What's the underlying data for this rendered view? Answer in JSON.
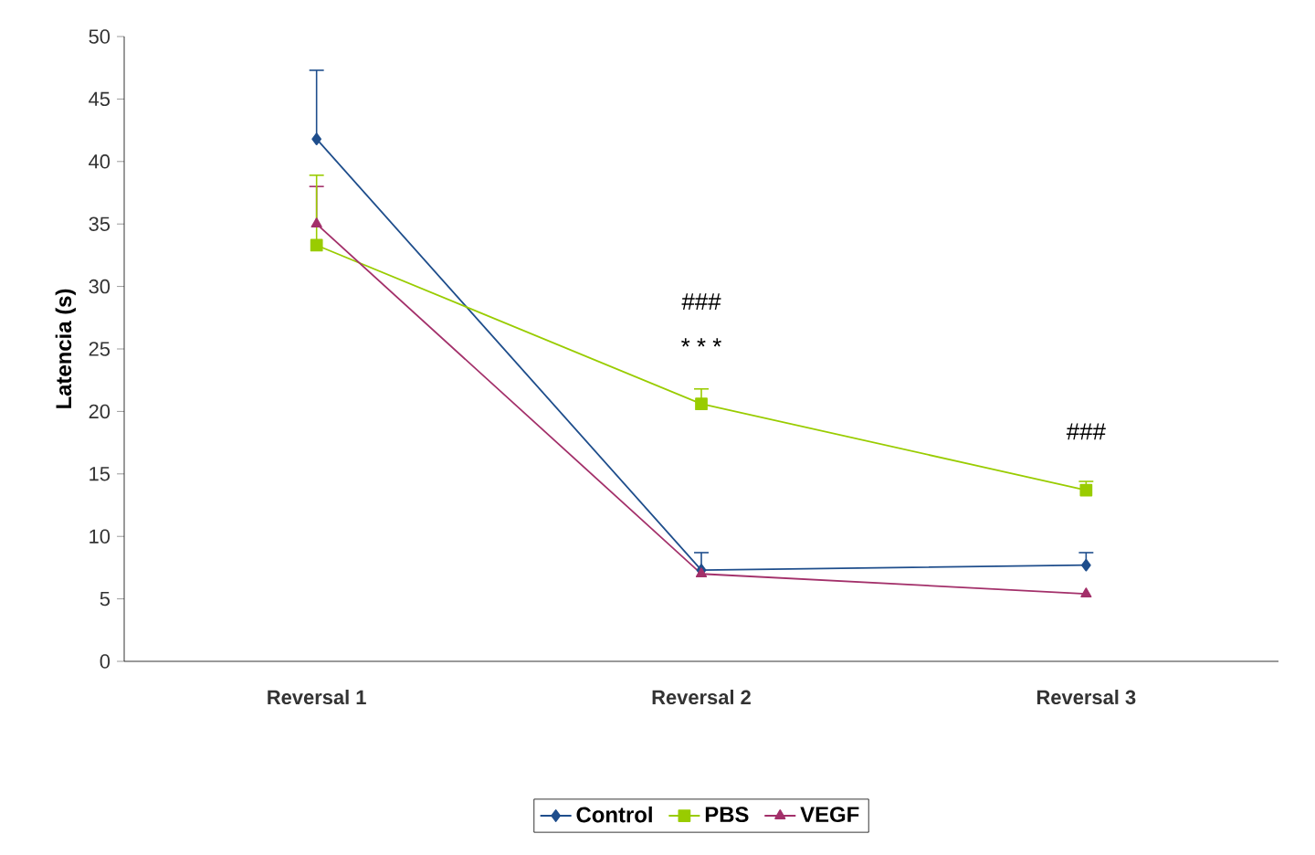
{
  "chart_data": {
    "type": "line",
    "ylabel": "Latencia (s)",
    "categories": [
      "Reversal 1",
      "Reversal 2",
      "Reversal 3"
    ],
    "ylim": [
      0,
      50
    ],
    "yticks": [
      0,
      5,
      10,
      15,
      20,
      25,
      30,
      35,
      40,
      45,
      50
    ],
    "grid": false,
    "legend": "bottom",
    "series": [
      {
        "name": "Control",
        "color": "#1f4e8c",
        "marker": "diamond",
        "values": [
          41.8,
          7.3,
          7.7
        ],
        "errors": [
          [
            41.8,
            47.3
          ],
          [
            7.3,
            8.7
          ],
          [
            7.7,
            8.7
          ]
        ]
      },
      {
        "name": "PBS",
        "color": "#99cc00",
        "marker": "square",
        "values": [
          33.3,
          20.6,
          13.7
        ],
        "errors": [
          [
            33.3,
            38.9
          ],
          [
            20.6,
            21.8
          ],
          [
            13.7,
            14.4
          ]
        ]
      },
      {
        "name": "VEGF",
        "color": "#a3306a",
        "marker": "triangle",
        "values": [
          35.0,
          7.0,
          5.4
        ],
        "errors": [
          [
            35.0,
            38.0
          ],
          null,
          null
        ]
      }
    ],
    "annotations": [
      "###",
      "* * *",
      "###"
    ]
  }
}
